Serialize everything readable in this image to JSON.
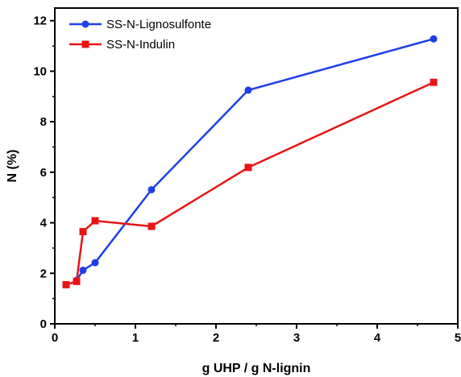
{
  "chart_data": {
    "type": "line",
    "xlabel": "g UHP / g N-lignin",
    "ylabel": "N (%)",
    "xlim": [
      0,
      5
    ],
    "ylim": [
      0,
      12.5
    ],
    "xticks": [
      0,
      1,
      2,
      3,
      4,
      5
    ],
    "yticks": [
      0,
      2,
      4,
      6,
      8,
      10,
      12
    ],
    "grid": false,
    "legend_position": "top-left",
    "series": [
      {
        "name": "SS-N-Lignosulfonte",
        "color": "#1f3fe6",
        "marker": "circle",
        "x": [
          0.27,
          0.35,
          0.5,
          1.2,
          2.4,
          4.7
        ],
        "y": [
          1.72,
          2.12,
          2.42,
          5.31,
          9.25,
          11.28
        ]
      },
      {
        "name": "SS-N-Indulin",
        "color": "#e81414",
        "marker": "square",
        "x": [
          0.14,
          0.27,
          0.35,
          0.5,
          1.2,
          2.4,
          4.7
        ],
        "y": [
          1.55,
          1.68,
          3.65,
          4.08,
          3.86,
          6.19,
          9.56
        ]
      }
    ]
  }
}
